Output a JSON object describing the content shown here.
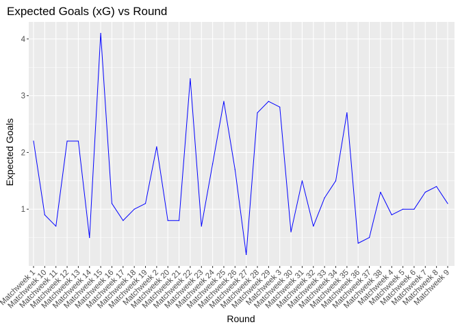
{
  "chart_data": {
    "type": "line",
    "title": "Expected Goals (xG) vs Round",
    "xlabel": "Round",
    "ylabel": "Expected Goals",
    "categories": [
      "Matchweek 1",
      "Matchweek 10",
      "Matchweek 11",
      "Matchweek 12",
      "Matchweek 13",
      "Matchweek 14",
      "Matchweek 15",
      "Matchweek 16",
      "Matchweek 17",
      "Matchweek 18",
      "Matchweek 19",
      "Matchweek 2",
      "Matchweek 20",
      "Matchweek 21",
      "Matchweek 22",
      "Matchweek 23",
      "Matchweek 24",
      "Matchweek 25",
      "Matchweek 26",
      "Matchweek 27",
      "Matchweek 28",
      "Matchweek 29",
      "Matchweek 3",
      "Matchweek 30",
      "Matchweek 31",
      "Matchweek 32",
      "Matchweek 33",
      "Matchweek 34",
      "Matchweek 35",
      "Matchweek 36",
      "Matchweek 37",
      "Matchweek 38",
      "Matchweek 4",
      "Matchweek 5",
      "Matchweek 6",
      "Matchweek 7",
      "Matchweek 8",
      "Matchweek 9"
    ],
    "values": [
      2.2,
      0.9,
      0.7,
      2.2,
      2.2,
      0.5,
      4.1,
      1.1,
      0.8,
      1.0,
      1.1,
      2.1,
      0.8,
      0.8,
      3.3,
      0.7,
      1.8,
      2.9,
      1.7,
      0.2,
      2.7,
      2.9,
      2.8,
      0.6,
      1.5,
      0.7,
      1.2,
      1.5,
      2.7,
      0.4,
      0.5,
      1.3,
      0.9,
      1.0,
      1.0,
      1.3,
      1.4,
      1.1
    ],
    "yticks": [
      1,
      2,
      3,
      4
    ],
    "ylim": [
      0.0,
      4.3
    ],
    "line_color": "#0000ff",
    "panel_color": "#ebebeb",
    "grid_color": "#ffffff",
    "grid": true,
    "legend": "none"
  }
}
